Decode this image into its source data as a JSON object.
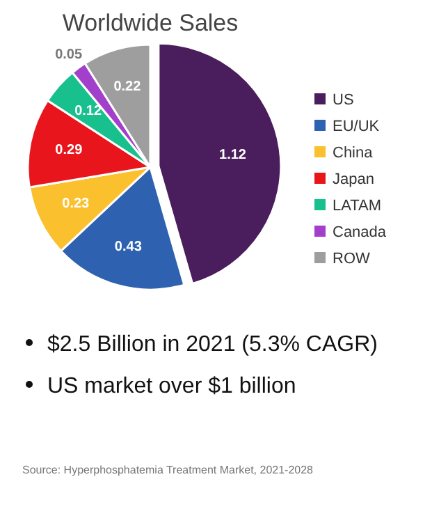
{
  "chart_data": {
    "type": "pie",
    "title": "Worldwide Sales",
    "categories": [
      "US",
      "EU/UK",
      "China",
      "Japan",
      "LATAM",
      "Canada",
      "ROW"
    ],
    "values": [
      1.12,
      0.43,
      0.23,
      0.29,
      0.12,
      0.05,
      0.22
    ],
    "colors": [
      "#4a1d5c",
      "#2e62b0",
      "#fbc02d",
      "#e8161c",
      "#17c08c",
      "#a23fcb",
      "#9e9e9e"
    ],
    "data_labels": true,
    "legend": "right",
    "annotations": [
      "$2.5 Billion in 2021 (5.3% CAGR)",
      "US market over $1 billion",
      "Source: Hyperphosphatemia Treatment Market, 2021-2028"
    ]
  }
}
